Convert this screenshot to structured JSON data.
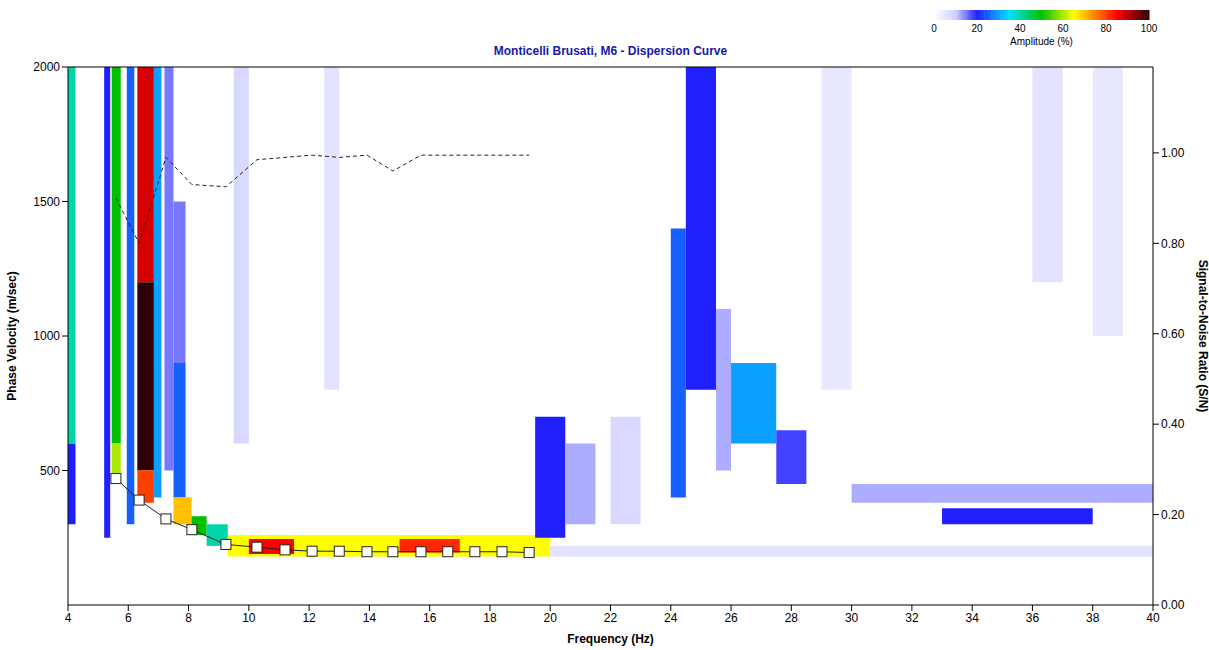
{
  "chart_data": {
    "type": "heatmap",
    "title": "Monticelli Brusati, M6 - Dispersion Curve",
    "x_label": "Frequency (Hz)",
    "y_label": "Phase Velocity (m/sec)",
    "y2_label": "Signal-to-Noise Ratio (S/N)",
    "xlim": [
      4,
      40
    ],
    "xticks": [
      4,
      6,
      8,
      10,
      12,
      14,
      16,
      18,
      20,
      22,
      24,
      26,
      28,
      30,
      32,
      34,
      36,
      38,
      40
    ],
    "ylim": [
      0,
      2000
    ],
    "yticks": [
      500,
      1000,
      1500,
      2000
    ],
    "y2lim": [
      0,
      1.19
    ],
    "y2ticks": [
      {
        "value": 0,
        "label": "0.00"
      },
      {
        "value": 0.2,
        "label": "0.20"
      },
      {
        "value": 0.4,
        "label": "0.40"
      },
      {
        "value": 0.6,
        "label": "0.60"
      },
      {
        "value": 0.8,
        "label": "0.80"
      },
      {
        "value": 1.0,
        "label": "1.00"
      }
    ],
    "grid": false,
    "series": [
      {
        "type": "line",
        "marker": "square",
        "line_style": "solid",
        "color": "#222222",
        "x": [
          5.59,
          6.36,
          7.25,
          8.11,
          9.24,
          10.27,
          11.2,
          12.1,
          13.0,
          13.92,
          14.78,
          15.71,
          16.6,
          17.5,
          18.4,
          19.3
        ],
        "values": [
          470,
          390,
          320,
          280,
          225,
          215,
          205,
          200,
          200,
          198,
          198,
          198,
          198,
          198,
          198,
          195
        ]
      },
      {
        "type": "line",
        "marker": "none",
        "line_style": "dashed",
        "axis": "y2",
        "color": "#222222",
        "x": [
          5.59,
          6.36,
          7.25,
          8.11,
          9.24,
          10.27,
          11.2,
          12.1,
          13.0,
          13.92,
          14.78,
          15.71,
          16.6,
          17.5,
          18.4,
          19.3
        ],
        "values": [
          0.9,
          0.8,
          0.99,
          0.93,
          0.925,
          0.985,
          0.99,
          0.995,
          0.99,
          0.995,
          0.96,
          0.995,
          0.995,
          0.995,
          0.995,
          0.995
        ]
      }
    ],
    "cells": [
      [
        4.0,
        4.25,
        600,
        2000,
        40
      ],
      [
        4.0,
        4.25,
        300,
        600,
        20
      ],
      [
        5.2,
        5.4,
        250,
        2000,
        20
      ],
      [
        5.45,
        5.75,
        600,
        2000,
        50
      ],
      [
        5.45,
        5.75,
        450,
        600,
        60
      ],
      [
        5.95,
        6.2,
        300,
        2000,
        25
      ],
      [
        6.3,
        6.85,
        1200,
        2000,
        88
      ],
      [
        6.3,
        6.85,
        500,
        1200,
        100
      ],
      [
        6.3,
        6.85,
        380,
        500,
        80
      ],
      [
        6.85,
        7.1,
        400,
        2000,
        30
      ],
      [
        7.2,
        7.5,
        500,
        2000,
        15
      ],
      [
        7.5,
        7.9,
        900,
        1500,
        15
      ],
      [
        7.5,
        7.9,
        400,
        900,
        25
      ],
      [
        7.5,
        8.1,
        300,
        400,
        70
      ],
      [
        8.1,
        8.6,
        260,
        330,
        50
      ],
      [
        8.6,
        9.3,
        220,
        300,
        40
      ],
      [
        9.3,
        20,
        180,
        260,
        65
      ],
      [
        10,
        11.5,
        190,
        245,
        85
      ],
      [
        15,
        17,
        195,
        245,
        82
      ],
      [
        9.5,
        10,
        600,
        2000,
        8
      ],
      [
        12.5,
        13,
        800,
        2000,
        6
      ],
      [
        19.5,
        20.5,
        250,
        700,
        20
      ],
      [
        20.5,
        21.5,
        300,
        600,
        12
      ],
      [
        22,
        23,
        300,
        700,
        8
      ],
      [
        24,
        24.5,
        400,
        1400,
        25
      ],
      [
        24.5,
        25.5,
        800,
        2000,
        20
      ],
      [
        25.5,
        26,
        500,
        1100,
        12
      ],
      [
        26,
        27.5,
        600,
        900,
        30
      ],
      [
        27.5,
        28.5,
        450,
        650,
        18
      ],
      [
        30,
        40,
        380,
        450,
        12
      ],
      [
        33,
        38,
        300,
        360,
        20
      ],
      [
        20,
        40,
        180,
        220,
        6
      ],
      [
        29,
        30,
        800,
        2000,
        5
      ],
      [
        36,
        37,
        1200,
        2000,
        6
      ],
      [
        38,
        39,
        1000,
        2000,
        5
      ]
    ],
    "colorbar": {
      "label": "Amplitude (%)",
      "range": [
        0,
        100
      ],
      "ticks": [
        0,
        20,
        40,
        60,
        80,
        100
      ]
    }
  }
}
